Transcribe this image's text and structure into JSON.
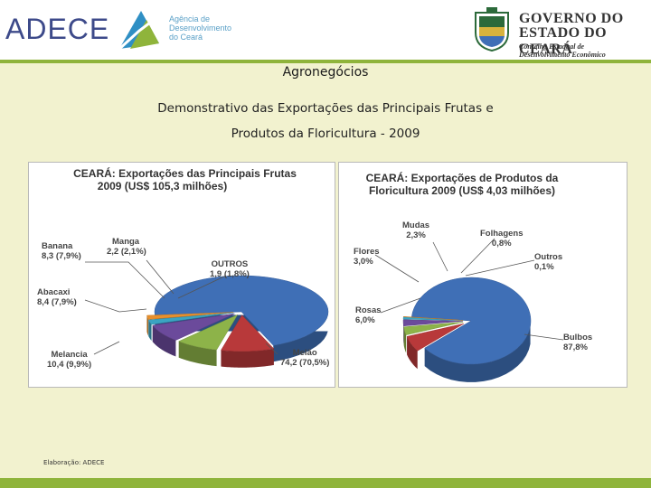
{
  "header": {
    "logo_text": "ADECE",
    "logo_sub": [
      "Agência de",
      "Desenvolvimento",
      "do Ceará"
    ],
    "gov_line1": "GOVERNO DO",
    "gov_line2": "ESTADO DO CEARÁ",
    "gov_line3": "Conselho Estadual de",
    "gov_line4": "Desenvolvimento Econômico"
  },
  "section_title": "Agronegócios",
  "subtitle_line1": "Demonstrativo das Exportações das Principais Frutas e",
  "subtitle_line2": "Produtos da Floricultura - 2009",
  "chart_data": [
    {
      "type": "pie",
      "title_line1": "CEARÁ: Exportações  das Principais  Frutas",
      "title_line2": "2009  (US$ 105,3 milhões)",
      "slices": [
        {
          "name": "Melão",
          "value": 74.2,
          "label": "74,2 (70,5%)",
          "color": "#3f6fb6"
        },
        {
          "name": "Melancia",
          "value": 10.4,
          "label": "10,4 (9,9%)",
          "color": "#b8393a"
        },
        {
          "name": "Abacaxi",
          "value": 8.4,
          "label": "8,4 (7,9%)",
          "color": "#8db349"
        },
        {
          "name": "Banana",
          "value": 8.3,
          "label": "8,3 (7,9%)",
          "color": "#6b4a9b"
        },
        {
          "name": "Manga",
          "value": 2.2,
          "label": "2,2 (2,1%)",
          "color": "#3aa4c2"
        },
        {
          "name": "OUTROS",
          "value": 1.9,
          "label": "1,9 (1,8%)",
          "color": "#e8902d"
        }
      ]
    },
    {
      "type": "pie",
      "title_line1": "CEARÁ: Exportações de Produtos da",
      "title_line2": "Floricultura 2009   (US$ 4,03  milhões)",
      "slices": [
        {
          "name": "Bulbos",
          "value": 87.8,
          "label": "87,8%",
          "color": "#3f6fb6"
        },
        {
          "name": "Rosas",
          "value": 6.0,
          "label": "6,0%",
          "color": "#b8393a"
        },
        {
          "name": "Flores",
          "value": 3.0,
          "label": "3,0%",
          "color": "#8db349"
        },
        {
          "name": "Mudas",
          "value": 2.3,
          "label": "2,3%",
          "color": "#6b4a9b"
        },
        {
          "name": "Folhagens",
          "value": 0.8,
          "label": "0,8%",
          "color": "#3aa4c2"
        },
        {
          "name": "Outros",
          "value": 0.1,
          "label": "0,1%",
          "color": "#e8902d"
        }
      ]
    }
  ],
  "footer_note": "Elaboração: ADECE"
}
